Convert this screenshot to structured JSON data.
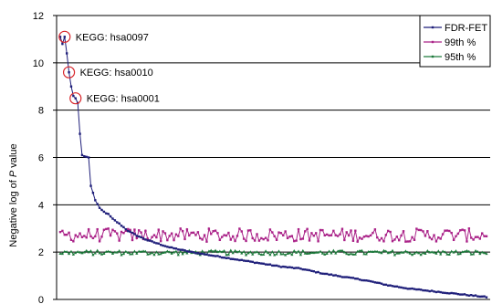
{
  "chart_data": {
    "type": "line",
    "ylabel_prefix": "Negative log of ",
    "ylabel_italic": "P",
    "ylabel_suffix": " value",
    "ylim": [
      0,
      12
    ],
    "yticks": [
      0,
      2,
      4,
      6,
      8,
      10,
      12
    ],
    "n_points": 196,
    "grid": true,
    "legend_position": "top-right",
    "annotations": [
      {
        "text": "KEGG: hsa0097",
        "x": 2,
        "y": 11.1
      },
      {
        "text": "KEGG: hsa0010",
        "x": 4,
        "y": 9.6
      },
      {
        "text": "KEGG: hsa0001",
        "x": 7,
        "y": 8.5
      }
    ],
    "series": [
      {
        "name": "FDR-FET",
        "color": "#1f1f7a",
        "anchors": [
          [
            0,
            11.1
          ],
          [
            1,
            10.8
          ],
          [
            2,
            11.1
          ],
          [
            3,
            10.4
          ],
          [
            4,
            9.6
          ],
          [
            5,
            9.0
          ],
          [
            6,
            8.6
          ],
          [
            7,
            8.5
          ],
          [
            8,
            8.3
          ],
          [
            9,
            7.0
          ],
          [
            10,
            6.1
          ],
          [
            11,
            6.05
          ],
          [
            13,
            6.0
          ],
          [
            14,
            4.8
          ],
          [
            16,
            4.2
          ],
          [
            18,
            3.85
          ],
          [
            20,
            3.7
          ],
          [
            22,
            3.6
          ],
          [
            24,
            3.4
          ],
          [
            27,
            3.2
          ],
          [
            31,
            2.9
          ],
          [
            35,
            2.7
          ],
          [
            40,
            2.5
          ],
          [
            45,
            2.35
          ],
          [
            50,
            2.2
          ],
          [
            55,
            2.1
          ],
          [
            60,
            2.0
          ],
          [
            70,
            1.85
          ],
          [
            80,
            1.7
          ],
          [
            90,
            1.55
          ],
          [
            100,
            1.4
          ],
          [
            110,
            1.3
          ],
          [
            120,
            1.1
          ],
          [
            130,
            0.95
          ],
          [
            140,
            0.8
          ],
          [
            150,
            0.6
          ],
          [
            160,
            0.45
          ],
          [
            170,
            0.35
          ],
          [
            180,
            0.25
          ],
          [
            190,
            0.15
          ],
          [
            195,
            0.1
          ]
        ]
      },
      {
        "name": "99th %",
        "color": "#aa2288",
        "center": 2.72,
        "amplitude": 0.28
      },
      {
        "name": "95th %",
        "color": "#1e7a3c",
        "center": 1.98,
        "amplitude": 0.1
      }
    ]
  }
}
